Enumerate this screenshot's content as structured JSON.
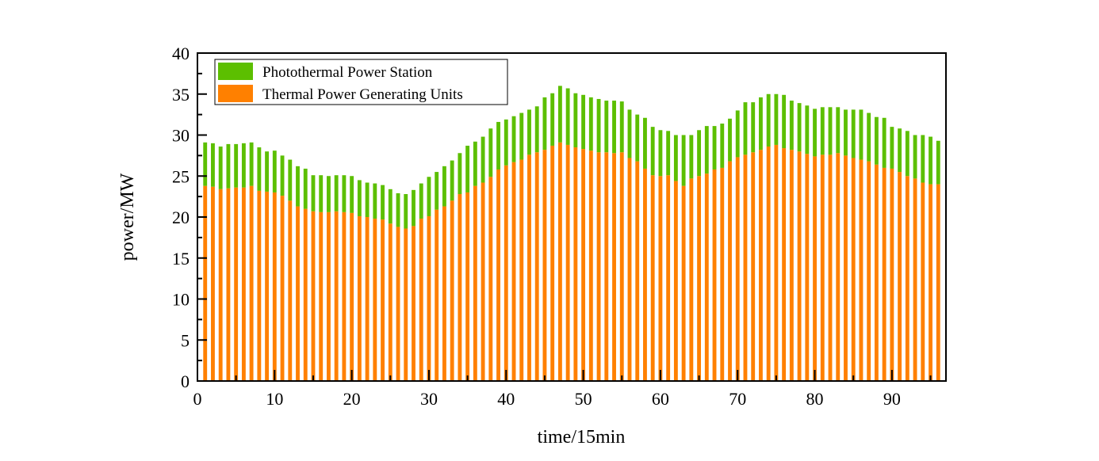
{
  "chart_data": {
    "type": "bar",
    "stacked": true,
    "title": "",
    "xlabel": "time/15min",
    "ylabel": "power/MW",
    "xlim": [
      0,
      97
    ],
    "ylim": [
      0,
      40
    ],
    "x_ticks": [
      0,
      10,
      20,
      30,
      40,
      50,
      60,
      70,
      80,
      90
    ],
    "y_ticks": [
      0,
      5,
      10,
      15,
      20,
      25,
      30,
      35,
      40
    ],
    "grid": false,
    "legend_position": "top-left",
    "x": [
      1,
      2,
      3,
      4,
      5,
      6,
      7,
      8,
      9,
      10,
      11,
      12,
      13,
      14,
      15,
      16,
      17,
      18,
      19,
      20,
      21,
      22,
      23,
      24,
      25,
      26,
      27,
      28,
      29,
      30,
      31,
      32,
      33,
      34,
      35,
      36,
      37,
      38,
      39,
      40,
      41,
      42,
      43,
      44,
      45,
      46,
      47,
      48,
      49,
      50,
      51,
      52,
      53,
      54,
      55,
      56,
      57,
      58,
      59,
      60,
      61,
      62,
      63,
      64,
      65,
      66,
      67,
      68,
      69,
      70,
      71,
      72,
      73,
      74,
      75,
      76,
      77,
      78,
      79,
      80,
      81,
      82,
      83,
      84,
      85,
      86,
      87,
      88,
      89,
      90,
      91,
      92,
      93,
      94,
      95,
      96
    ],
    "series": [
      {
        "name": "Thermal Power Generating Units",
        "color": "#ff8000",
        "values": [
          23.8,
          23.7,
          23.4,
          23.5,
          23.6,
          23.6,
          23.8,
          23.2,
          23.1,
          23.0,
          22.6,
          22.0,
          21.3,
          21.0,
          20.7,
          20.6,
          20.6,
          20.7,
          20.6,
          20.5,
          20.1,
          20.0,
          19.8,
          19.7,
          19.2,
          18.8,
          18.6,
          18.9,
          19.8,
          20.1,
          20.9,
          21.3,
          22.0,
          22.8,
          23.0,
          23.8,
          24.2,
          24.9,
          25.8,
          26.3,
          26.7,
          27.0,
          27.6,
          27.9,
          28.2,
          28.7,
          29.1,
          28.8,
          28.5,
          28.3,
          28.1,
          27.9,
          27.9,
          27.8,
          27.9,
          27.2,
          26.8,
          25.9,
          25.1,
          25.0,
          25.1,
          24.4,
          23.8,
          24.7,
          25.0,
          25.3,
          25.8,
          26.0,
          26.8,
          27.3,
          27.6,
          27.9,
          28.2,
          28.6,
          28.8,
          28.4,
          28.2,
          28.0,
          27.7,
          27.4,
          27.6,
          27.6,
          27.8,
          27.5,
          27.2,
          27.0,
          26.8,
          26.4,
          26.0,
          25.9,
          25.5,
          25.0,
          24.7,
          24.2,
          24.0,
          24.0
        ]
      },
      {
        "name": "Photothermal Power Station",
        "color": "#5cbf00",
        "values": [
          5.3,
          5.3,
          5.2,
          5.4,
          5.3,
          5.4,
          5.3,
          5.3,
          4.9,
          5.1,
          4.9,
          5.0,
          4.9,
          4.9,
          4.4,
          4.5,
          4.4,
          4.4,
          4.5,
          4.5,
          4.4,
          4.2,
          4.3,
          4.2,
          4.2,
          4.1,
          4.2,
          4.4,
          4.3,
          4.8,
          4.6,
          4.9,
          4.9,
          5.0,
          5.7,
          5.4,
          5.6,
          5.9,
          5.8,
          5.6,
          5.6,
          5.7,
          5.5,
          5.6,
          6.4,
          6.4,
          6.9,
          6.9,
          6.6,
          6.6,
          6.5,
          6.5,
          6.3,
          6.4,
          6.2,
          5.9,
          5.7,
          6.2,
          5.9,
          5.6,
          5.4,
          5.6,
          6.2,
          5.3,
          5.6,
          5.8,
          5.3,
          5.4,
          5.2,
          5.7,
          6.4,
          6.1,
          6.4,
          6.4,
          6.2,
          6.5,
          6.0,
          5.9,
          5.9,
          5.8,
          5.8,
          5.8,
          5.6,
          5.6,
          5.9,
          6.1,
          5.9,
          5.8,
          6.1,
          5.1,
          5.3,
          5.5,
          5.3,
          5.8,
          5.8,
          5.3
        ]
      }
    ],
    "legend": [
      {
        "label": "Photothermal Power Station",
        "color": "#5cbf00"
      },
      {
        "label": "Thermal Power Generating Units",
        "color": "#ff8000"
      }
    ]
  }
}
